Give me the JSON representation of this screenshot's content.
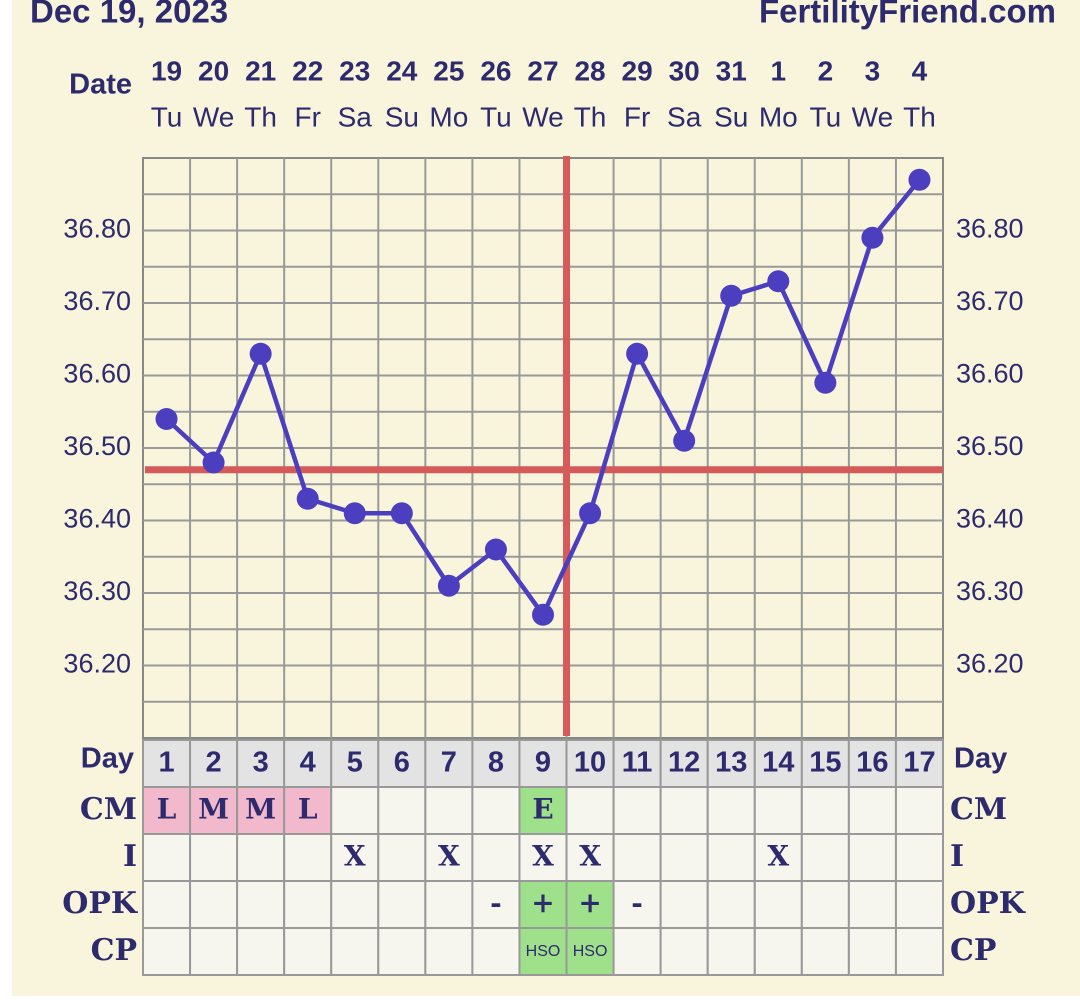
{
  "chart_data": {
    "type": "line",
    "title": "Dec 19, 2023",
    "brand": "FertilityFriend.com",
    "date_label": "Date",
    "day_label": "Day",
    "categories": [
      "19",
      "20",
      "21",
      "22",
      "23",
      "24",
      "25",
      "26",
      "27",
      "28",
      "29",
      "30",
      "31",
      "1",
      "2",
      "3",
      "4"
    ],
    "weekdays": [
      "Tu",
      "We",
      "Th",
      "Fr",
      "Sa",
      "Su",
      "Mo",
      "Tu",
      "We",
      "Th",
      "Fr",
      "Sa",
      "Su",
      "Mo",
      "Tu",
      "We",
      "Th"
    ],
    "cycle_days": [
      1,
      2,
      3,
      4,
      5,
      6,
      7,
      8,
      9,
      10,
      11,
      12,
      13,
      14,
      15,
      16,
      17
    ],
    "series": [
      {
        "color": "#4b3fbf",
        "values": [
          36.54,
          36.48,
          36.63,
          36.43,
          36.41,
          36.41,
          36.31,
          36.36,
          36.27,
          36.41,
          36.63,
          36.51,
          36.71,
          36.73,
          36.59,
          36.79,
          36.87
        ]
      }
    ],
    "ylim": [
      36.1,
      36.9
    ],
    "yticks": [
      {
        "value": 36.2,
        "label": "36.20"
      },
      {
        "value": 36.3,
        "label": "36.30"
      },
      {
        "value": 36.4,
        "label": "36.40"
      },
      {
        "value": 36.5,
        "label": "36.50"
      },
      {
        "value": 36.6,
        "label": "36.60"
      },
      {
        "value": 36.7,
        "label": "36.70"
      },
      {
        "value": 36.8,
        "label": "36.80"
      }
    ],
    "minor_yticks": [
      36.15,
      36.25,
      36.35,
      36.45,
      36.55,
      36.65,
      36.75,
      36.85
    ],
    "grid": true,
    "coverline": 36.47,
    "ovulation_day": 10,
    "marker_color": "#d65a5a",
    "rows": [
      {
        "label": "CM",
        "values": [
          "L",
          "M",
          "M",
          "L",
          null,
          null,
          null,
          null,
          "E",
          null,
          null,
          null,
          null,
          null,
          null,
          null,
          null
        ],
        "colors": [
          "#f2b8cc",
          "#f2b8cc",
          "#f2b8cc",
          "#f2b8cc",
          null,
          null,
          null,
          null,
          "#9fe08a",
          null,
          null,
          null,
          null,
          null,
          null,
          null,
          null
        ]
      },
      {
        "label": "I",
        "values": [
          null,
          null,
          null,
          null,
          "X",
          null,
          "X",
          null,
          "X",
          "X",
          null,
          null,
          null,
          "X",
          null,
          null,
          null
        ],
        "colors": [
          null,
          null,
          null,
          null,
          null,
          null,
          null,
          null,
          null,
          null,
          null,
          null,
          null,
          null,
          null,
          null,
          null
        ]
      },
      {
        "label": "OPK",
        "values": [
          null,
          null,
          null,
          null,
          null,
          null,
          null,
          "-",
          "+",
          "+",
          "-",
          null,
          null,
          null,
          null,
          null,
          null
        ],
        "colors": [
          null,
          null,
          null,
          null,
          null,
          null,
          null,
          null,
          "#9fe08a",
          "#9fe08a",
          null,
          null,
          null,
          null,
          null,
          null,
          null
        ]
      },
      {
        "label": "CP",
        "values": [
          null,
          null,
          null,
          null,
          null,
          null,
          null,
          null,
          "HSO",
          "HSO",
          null,
          null,
          null,
          null,
          null,
          null,
          null
        ],
        "colors": [
          null,
          null,
          null,
          null,
          null,
          null,
          null,
          null,
          "#9fe08a",
          "#9fe08a",
          null,
          null,
          null,
          null,
          null,
          null,
          null
        ]
      }
    ]
  }
}
